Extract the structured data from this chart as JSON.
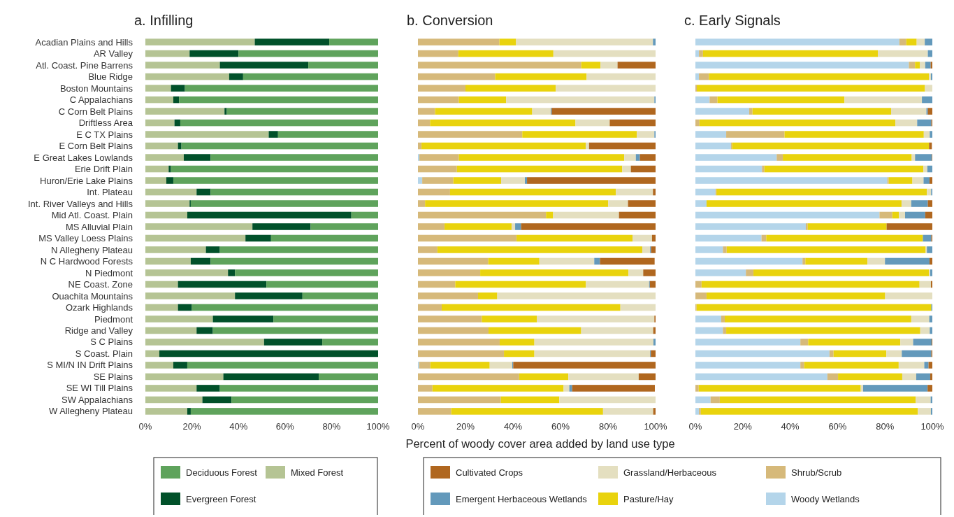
{
  "chart_data": [
    {
      "type": "bar",
      "orientation": "horizontal",
      "stacked": true,
      "title": "a. Infilling",
      "legend": "bottom",
      "categories": [
        "Acadian Plains and Hills",
        "AR Valley",
        "Atl. Coast. Pine Barrens",
        "Blue Ridge",
        "Boston Mountains",
        "C Appalachians",
        "C Corn Belt Plains",
        "Driftless Area",
        "E C TX Plains",
        "E Corn Belt Plains",
        "E Great Lakes Lowlands",
        "Erie Drift Plain",
        "Huron/Erie Lake Plains",
        "Int. Plateau",
        "Int. River Valleys and Hills",
        "Mid Atl. Coast. Plain",
        "MS Alluvial Plain",
        "MS Valley Loess Plains",
        "N Allegheny Plateau",
        "N C Hardwood Forests",
        "N Piedmont",
        "NE Coast. Zone",
        "Ouachita Mountains",
        "Ozark Highlands",
        "Piedmont",
        "Ridge and Valley",
        "S C Plains",
        "S Coast. Plain",
        "S MI/N IN Drift Plains",
        "SE Plains",
        "SE WI Till Plains",
        "SW Appalachians",
        "W Allegheny Plateau"
      ],
      "xlim": [
        0,
        100
      ],
      "xticks": [
        {
          "value": 0,
          "label": "0%"
        },
        {
          "value": 20,
          "label": "20%"
        },
        {
          "value": 40,
          "label": "40%"
        },
        {
          "value": 60,
          "label": "60%"
        },
        {
          "value": 80,
          "label": "80%"
        },
        {
          "value": 100,
          "label": "100%"
        }
      ],
      "series": [
        {
          "name": "Mixed Forest",
          "color": "#b5c494",
          "values": [
            47,
            19,
            32,
            36,
            11,
            12,
            34,
            12.5,
            53,
            14,
            16.5,
            10,
            9,
            22,
            19,
            18,
            46,
            43,
            26,
            19.5,
            35.5,
            14,
            38.5,
            14,
            29,
            22,
            51,
            6,
            12,
            33.5,
            22,
            24.5,
            18
          ]
        },
        {
          "name": "Evergreen Forest",
          "color": "#01512a",
          "values": [
            32,
            21,
            38,
            6,
            6,
            2.5,
            1,
            2.5,
            4,
            1.5,
            11.5,
            1,
            3,
            6,
            0.5,
            70.5,
            25,
            11,
            6,
            8.5,
            3,
            38,
            29,
            6,
            26,
            7,
            25,
            94,
            6,
            41,
            10,
            12.5,
            1.5
          ]
        },
        {
          "name": "Deciduous Forest",
          "color": "#5fa35c",
          "values": [
            21,
            60,
            30,
            58,
            83,
            85.5,
            65,
            85,
            43,
            84.5,
            72,
            89,
            88,
            72,
            80.5,
            11.5,
            29,
            46,
            68,
            72,
            61.5,
            48,
            32.5,
            80,
            45,
            71,
            24,
            0,
            82,
            25.5,
            68,
            63,
            80.5
          ]
        }
      ]
    },
    {
      "type": "bar",
      "orientation": "horizontal",
      "stacked": true,
      "title": "b. Conversion",
      "legend": "bottom",
      "tick_labels": "x",
      "xlabel": "Percent of woody cover area added by land use type",
      "categories": [
        null,
        null,
        null,
        null,
        null,
        null,
        null,
        null,
        null,
        null,
        null,
        null,
        null,
        null,
        null,
        null,
        null,
        null,
        null,
        null,
        null,
        null,
        null,
        null,
        null,
        null,
        null,
        null,
        null,
        null,
        null,
        null,
        null
      ],
      "xlim": [
        0,
        100
      ],
      "xticks": [
        {
          "value": 0,
          "label": "0%"
        },
        {
          "value": 20,
          "label": "20%"
        },
        {
          "value": 40,
          "label": "40%"
        },
        {
          "value": 60,
          "label": "60%"
        },
        {
          "value": 80,
          "label": "80%"
        },
        {
          "value": 100,
          "label": "100%"
        }
      ],
      "series": [
        {
          "name": "Woody Wetlands",
          "color": "#b4d5ea",
          "values": [
            0,
            0,
            0,
            0,
            0,
            0,
            0,
            0,
            0,
            0,
            0.6,
            0,
            1.8,
            0,
            0,
            0,
            0,
            0,
            0,
            null,
            0,
            0,
            0,
            0,
            0,
            0,
            0,
            0,
            0.5,
            0,
            null,
            0,
            0
          ]
        },
        {
          "name": "Shrub/Scrub",
          "color": "#d6b97a",
          "values": [
            34.3,
            17,
            68.7,
            32.5,
            20,
            17.2,
            7.2,
            5.1,
            43.9,
            1.5,
            16.6,
            16.4,
            13.1,
            13.5,
            3,
            53.9,
            11.2,
            41.5,
            8.2,
            29.6,
            26.2,
            15.7,
            25.3,
            10,
            26.9,
            29.7,
            34.4,
            36.2,
            4.7,
            42.6,
            6.1,
            34.9,
            14
          ]
        },
        {
          "name": "Pasture/Hay",
          "color": "#e9d30d",
          "values": [
            7,
            40,
            8.1,
            38.5,
            38,
            19.9,
            40.9,
            61.2,
            48.2,
            69.1,
            69.6,
            69.6,
            20.1,
            69.8,
            77.1,
            3,
            28.2,
            48.8,
            86.2,
            21.5,
            62.4,
            55,
            8.1,
            75.2,
            23.1,
            39,
            14.6,
            12.8,
            25,
            20.7,
            55.2,
            24.6,
            63.9
          ]
        },
        {
          "name": "Grassland/Herbaceous",
          "color": "#e4dfc0",
          "values": [
            57.6,
            43,
            7.2,
            29,
            42,
            62.4,
            7.8,
            14.4,
            7.4,
            1.4,
            4.9,
            3.6,
            10,
            15.6,
            8.3,
            27.7,
            1.5,
            8.2,
            3.3,
            23.1,
            6.2,
            26.6,
            66.6,
            14.8,
            49.5,
            30.3,
            50.1,
            48.7,
            9.5,
            29.6,
            2.4,
            40.5,
            21.1
          ]
        },
        {
          "name": "Emergent Herbaceous Wetlands",
          "color": "#6399bb",
          "values": [
            1.1,
            0,
            0,
            0,
            0,
            0.5,
            0.4,
            0,
            0.5,
            0,
            1.7,
            0,
            0.9,
            0,
            0,
            0,
            2.5,
            0,
            0.4,
            2.4,
            0,
            0.3,
            0,
            0,
            0,
            0,
            0.9,
            0.3,
            0.4,
            0,
            1.2,
            0,
            0
          ]
        },
        {
          "name": "Cultivated Crops",
          "color": "#b0671f",
          "values": [
            0,
            0,
            16,
            0,
            0,
            0,
            43.7,
            19.3,
            0,
            28,
            6.6,
            10.4,
            54.1,
            1.1,
            11.6,
            15.4,
            56.6,
            1.5,
            1.9,
            23,
            5.2,
            2.4,
            0,
            0,
            0.5,
            1,
            0,
            2,
            59.9,
            7.1,
            34.8,
            0,
            1
          ]
        }
      ]
    },
    {
      "type": "bar",
      "orientation": "horizontal",
      "stacked": true,
      "title": "c. Early Signals",
      "tick_labels": "x",
      "categories": [
        null,
        null,
        null,
        null,
        null,
        null,
        null,
        null,
        null,
        null,
        null,
        null,
        null,
        null,
        null,
        null,
        null,
        null,
        null,
        null,
        null,
        null,
        null,
        null,
        null,
        null,
        null,
        null,
        null,
        null,
        null,
        null,
        null
      ],
      "xlim": [
        0,
        100
      ],
      "xticks": [
        {
          "value": 0,
          "label": "0%"
        },
        {
          "value": 20,
          "label": "20%"
        },
        {
          "value": 40,
          "label": "40%"
        },
        {
          "value": 60,
          "label": "60%"
        },
        {
          "value": 80,
          "label": "80%"
        },
        {
          "value": 100,
          "label": "100%"
        }
      ],
      "series": [
        {
          "color": "#b4d5ea",
          "values": [
            86.1,
            1.5,
            90.1,
            1.5,
            0,
            6,
            22.7,
            0,
            13,
            15,
            34.3,
            28.1,
            81,
            8.5,
            4.7,
            77.7,
            46.6,
            27.9,
            11.6,
            45.2,
            21.3,
            0,
            0,
            0,
            10.9,
            11.6,
            44.3,
            56.6,
            44.3,
            55.7,
            0,
            6.4,
            1.5
          ]
        },
        {
          "color": "#d6b97a",
          "values": [
            2.9,
            1.7,
            2.6,
            4.2,
            0.6,
            3.3,
            1.4,
            1.7,
            24.6,
            0.5,
            2.6,
            1,
            0.6,
            0.4,
            0,
            5.4,
            0.8,
            2,
            1.6,
            1.2,
            3.2,
            2.6,
            4.7,
            0.5,
            1.5,
            1.4,
            3.3,
            1.7,
            1.6,
            4.5,
            1.4,
            3.9,
            0.8
          ]
        },
        {
          "color": "#e9d30d",
          "values": [
            4.4,
            73.8,
            2,
            92.9,
            96.3,
            53.6,
            58.5,
            82.7,
            58.8,
            83.1,
            54.4,
            67.1,
            10,
            88.8,
            82.3,
            2.8,
            33.3,
            66.1,
            84,
            26.2,
            74.1,
            92,
            75.4,
            99.1,
            78.7,
            81.9,
            38.9,
            22.3,
            39.9,
            27.1,
            68.4,
            82.7,
            91.6
          ]
        },
        {
          "color": "#e4dfc0",
          "values": [
            3.4,
            21.1,
            2.3,
            0.8,
            3.1,
            32.7,
            14.9,
            9.2,
            2.5,
            null,
            1.4,
            1.7,
            4.7,
            1.8,
            4.1,
            2.6,
            0,
            0,
            0.5,
            7.4,
            0.5,
            4.8,
            19.9,
            0,
            7.6,
            4,
            5.4,
            6.5,
            10.8,
            5.9,
            1,
            6.3,
            5.5
          ]
        },
        {
          "color": "#6399bb",
          "values": [
            3.2,
            1.9,
            2.3,
            0.6,
            0,
            4.4,
            0.6,
            6,
            1.1,
            0,
            7.1,
            2.1,
            2.5,
            0.5,
            7,
            8.5,
            0,
            3.6,
            2.3,
            18.8,
            0.9,
            0,
            0,
            0.4,
            1.3,
            1.1,
            7.8,
            12.5,
            1.8,
            5.9,
            27.2,
            0.7,
            0.6
          ]
        },
        {
          "color": "#b0671f",
          "values": [
            0,
            0,
            0.7,
            0,
            0,
            0,
            1.9,
            0.4,
            0,
            1.2,
            0.2,
            0,
            1.2,
            0,
            1.9,
            3,
            19.3,
            0.4,
            0,
            1.2,
            0,
            0.6,
            0,
            0,
            0,
            0,
            0.3,
            0.4,
            1.6,
            0.9,
            2,
            0,
            0
          ]
        }
      ]
    }
  ]
}
